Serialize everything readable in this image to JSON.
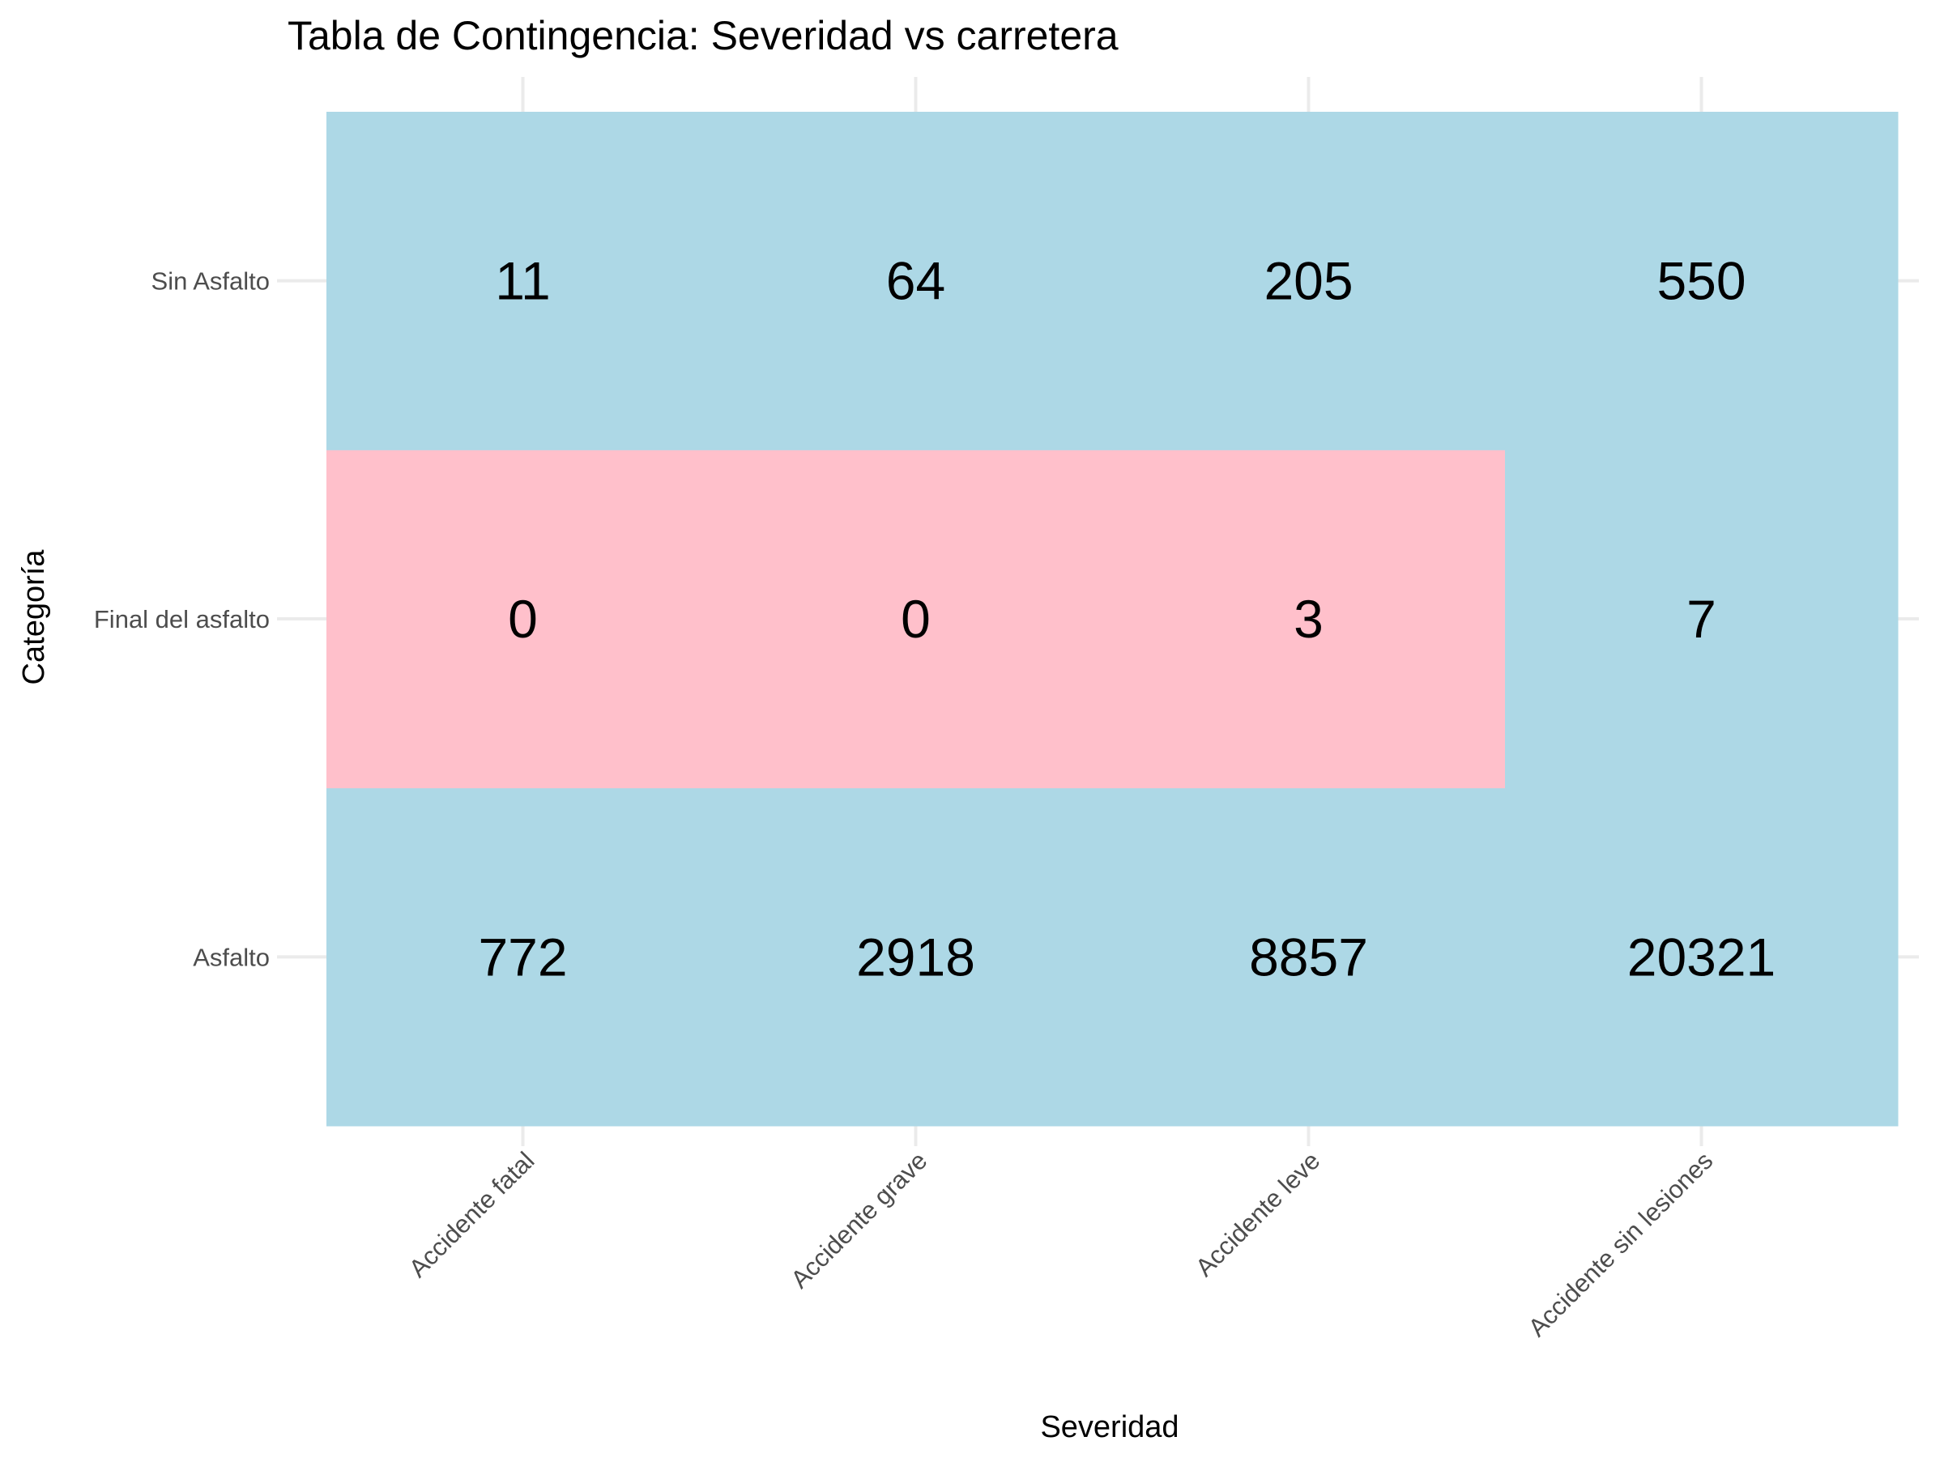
{
  "chart_data": {
    "type": "heatmap",
    "title": "Tabla de Contingencia: Severidad vs carretera",
    "xlabel": "Severidad",
    "ylabel": "Categoría",
    "x_categories": [
      "Accidente fatal",
      "Accidente grave",
      "Accidente leve",
      "Accidente sin lesiones"
    ],
    "y_categories": [
      "Asfalto",
      "Final del asfalto",
      "Sin Asfalto"
    ],
    "values": [
      [
        772,
        2918,
        8857,
        20321
      ],
      [
        0,
        0,
        3,
        7
      ],
      [
        11,
        64,
        205,
        550
      ]
    ],
    "fill_colors": [
      [
        "#add8e6",
        "#add8e6",
        "#add8e6",
        "#add8e6"
      ],
      [
        "#ffc0cb",
        "#ffc0cb",
        "#ffc0cb",
        "#add8e6"
      ],
      [
        "#add8e6",
        "#add8e6",
        "#add8e6",
        "#add8e6"
      ]
    ],
    "colors": {
      "light_blue": "#add8e6",
      "pink": "#ffc0cb",
      "gridline": "#ebebeb",
      "tick_text": "#4d4d4d"
    },
    "grid": true,
    "legend": "none"
  }
}
